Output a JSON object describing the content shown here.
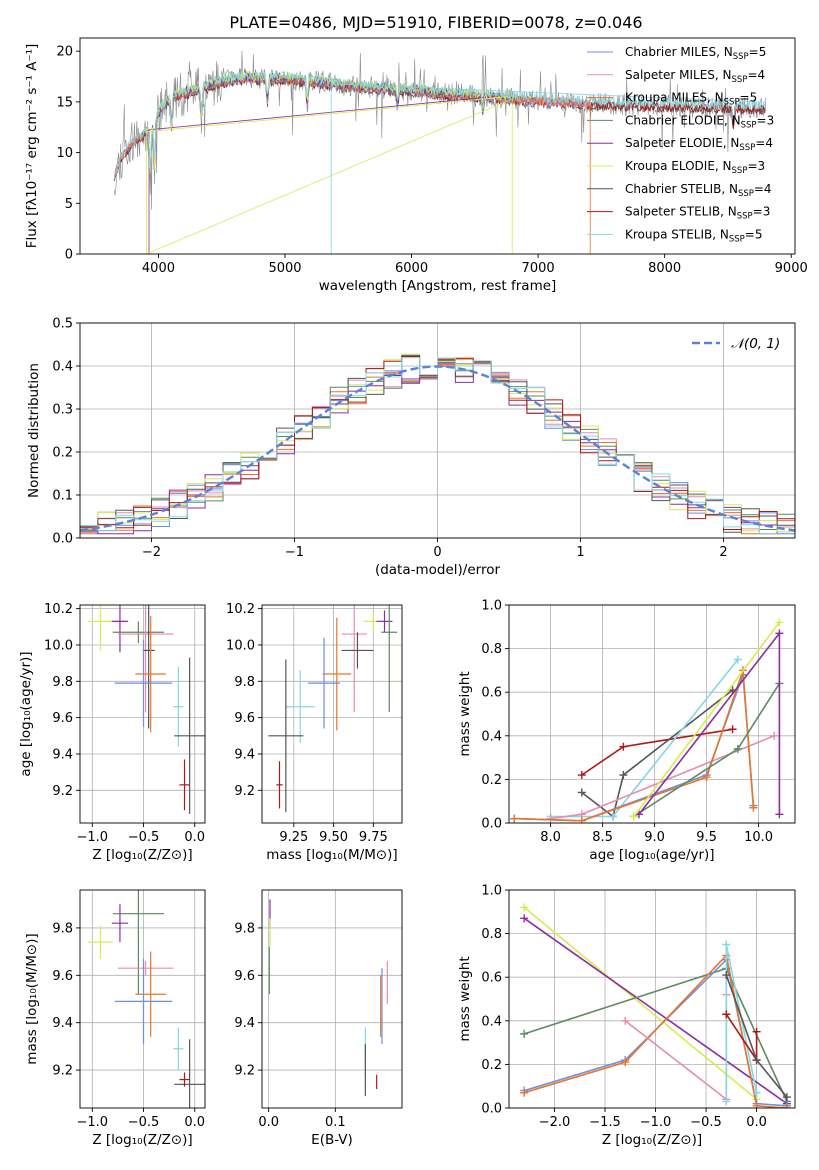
{
  "figure": {
    "title": "PLATE=0486, MJD=51910, FIBERID=0078, z=0.046"
  },
  "colors": {
    "Chabrier MILES": "#6f8fdc",
    "Salpeter MILES": "#e88ab2",
    "Kroupa MILES": "#e8762a",
    "Chabrier ELODIE": "#5d8a62",
    "Salpeter ELODIE": "#8e2ca0",
    "Kroupa ELODIE": "#d6ec52",
    "Chabrier STELIB": "#555555",
    "Salpeter STELIB": "#b01818",
    "Kroupa STELIB": "#82d8e4",
    "normal": "#5b82d8"
  },
  "chart_data": [
    {
      "id": "spectrum",
      "type": "line",
      "xlabel": "wavelength [Angstrom, rest frame]",
      "ylabel": "Flux [fλ10⁻¹⁷ erg cm⁻² s⁻¹ A⁻¹]",
      "xlim": [
        3380,
        9030
      ],
      "ylim": [
        0,
        21.3
      ],
      "xticks": [
        "4000",
        "5000",
        "6000",
        "7000",
        "8000",
        "9000"
      ],
      "yticks": [
        "0",
        "5",
        "10",
        "15",
        "20"
      ],
      "grid": false,
      "legend_position": "right",
      "legend": [
        {
          "model": "Chabrier MILES",
          "label": "Chabrier MILES, N",
          "sub": "SSP",
          "tail": "=5"
        },
        {
          "model": "Salpeter MILES",
          "label": "Salpeter MILES, N",
          "sub": "SSP",
          "tail": "=4"
        },
        {
          "model": "Kroupa MILES",
          "label": "Kroupa MILES, N",
          "sub": "SSP",
          "tail": "=5"
        },
        {
          "model": "Chabrier ELODIE",
          "label": "Chabrier ELODIE, N",
          "sub": "SSP",
          "tail": "=3"
        },
        {
          "model": "Salpeter ELODIE",
          "label": "Salpeter ELODIE, N",
          "sub": "SSP",
          "tail": "=4"
        },
        {
          "model": "Kroupa ELODIE",
          "label": "Kroupa ELODIE, N",
          "sub": "SSP",
          "tail": "=3"
        },
        {
          "model": "Chabrier STELIB",
          "label": "Chabrier STELIB, N",
          "sub": "SSP",
          "tail": "=4"
        },
        {
          "model": "Salpeter STELIB",
          "label": "Salpeter STELIB, N",
          "sub": "SSP",
          "tail": "=3"
        },
        {
          "model": "Kroupa STELIB",
          "label": "Kroupa STELIB, N",
          "sub": "SSP",
          "tail": "=5"
        }
      ],
      "continuum": [
        [
          3650,
          7.5
        ],
        [
          3700,
          9.5
        ],
        [
          3800,
          11
        ],
        [
          3900,
          12
        ],
        [
          3950,
          12.5
        ],
        [
          4000,
          14
        ],
        [
          4100,
          15.5
        ],
        [
          4300,
          16.2
        ],
        [
          4500,
          17
        ],
        [
          4700,
          17.3
        ],
        [
          5000,
          17.3
        ],
        [
          5500,
          16.6
        ],
        [
          6000,
          16.1
        ],
        [
          6500,
          15.6
        ],
        [
          7000,
          15.1
        ],
        [
          7500,
          14.8
        ],
        [
          8000,
          14.6
        ],
        [
          8500,
          14.5
        ],
        [
          8800,
          14.4
        ]
      ],
      "absorption_lines": [
        [
          3934,
          5
        ],
        [
          3968,
          5
        ],
        [
          4102,
          3.5
        ],
        [
          4340,
          3
        ],
        [
          4861,
          2.5
        ],
        [
          5175,
          2.5
        ],
        [
          5890,
          1.5
        ],
        [
          6563,
          1.5
        ],
        [
          8542,
          2
        ]
      ],
      "emission_spikes": [
        [
          3727,
          4.5
        ],
        [
          4750,
          1.5
        ],
        [
          5300,
          1
        ],
        [
          6563,
          5
        ],
        [
          6583,
          3
        ],
        [
          6716,
          2
        ],
        [
          7100,
          2
        ],
        [
          7700,
          2
        ],
        [
          8300,
          2
        ]
      ],
      "artifacts": [
        {
          "model": "Kroupa ELODIE",
          "x": 3905,
          "to": 0
        },
        {
          "model": "Salpeter ELODIE",
          "x": 3925,
          "to": 0
        },
        {
          "model": "Kroupa STELIB",
          "x": 5365,
          "to": 0
        },
        {
          "model": "Kroupa ELODIE",
          "x": 6795,
          "to": 0
        },
        {
          "model": "Kroupa MILES",
          "x": 7412,
          "to": 0
        }
      ]
    },
    {
      "id": "residuals",
      "type": "histogram",
      "xlabel": "(data-model)/error",
      "ylabel": "Normed distribution",
      "xlim": [
        -2.5,
        2.5
      ],
      "ylim": [
        0,
        0.5
      ],
      "xticks": [
        "−2",
        "−1",
        "0",
        "1",
        "2"
      ],
      "yticks": [
        "0.0",
        "0.1",
        "0.2",
        "0.3",
        "0.4",
        "0.5"
      ],
      "grid": true,
      "legend_position": "top-right",
      "normal_label": "𝒩(0, 1)",
      "bin_width": 0.125,
      "noise_seed": 7
    },
    {
      "id": "age_vs_Z",
      "type": "errorbar",
      "xlabel": "Z [log₁₀(Z/Z⊙)]",
      "ylabel": "age  [log₁₀(age/yr)]",
      "xlim": [
        -1.12,
        0.1
      ],
      "ylim": [
        9.02,
        10.22
      ],
      "xticks": [
        -1.0,
        -0.5,
        0.0
      ],
      "xticklabels": [
        "−1.0",
        "−0.5",
        "0.0"
      ],
      "yticks": [
        9.2,
        9.4,
        9.6,
        9.8,
        10.0,
        10.2
      ],
      "yticklabels": [
        "9.2",
        "9.4",
        "9.6",
        "9.8",
        "10.0",
        "10.2"
      ],
      "points": [
        {
          "model": "Kroupa ELODIE",
          "x": -0.92,
          "xe": 0.12,
          "y": 10.13,
          "ye": 0.16
        },
        {
          "model": "Salpeter ELODIE",
          "x": -0.73,
          "xe": 0.08,
          "y": 10.13,
          "ye": 0.17
        },
        {
          "model": "Chabrier ELODIE",
          "x": -0.55,
          "xe": 0.25,
          "y": 10.07,
          "ye": 0.06
        },
        {
          "model": "Salpeter MILES",
          "x": -0.48,
          "xe": 0.27,
          "y": 10.06,
          "ye": 0.43
        },
        {
          "model": "Chabrier STELIB",
          "x": -0.45,
          "xe": 0.06,
          "y": 9.97,
          "ye": 0.43
        },
        {
          "model": "Kroupa MILES",
          "x": -0.43,
          "xe": 0.15,
          "y": 9.84,
          "ye": 0.32
        },
        {
          "model": "Chabrier MILES",
          "x": -0.5,
          "xe": 0.28,
          "y": 9.79,
          "ye": 0.24
        },
        {
          "model": "Kroupa STELIB",
          "x": -0.16,
          "xe": 0.05,
          "y": 9.66,
          "ye": 0.22
        },
        {
          "model": "Chabrier STELIB",
          "x": -0.05,
          "xe": 0.15,
          "y": 9.5,
          "ye": 0.43
        },
        {
          "model": "Salpeter STELIB",
          "x": -0.1,
          "xe": 0.05,
          "y": 9.23,
          "ye": 0.14
        }
      ]
    },
    {
      "id": "age_vs_mass",
      "type": "errorbar",
      "xlabel": "mass [log₁₀(M/M⊙)]",
      "ylabel": "",
      "xlim": [
        9.05,
        9.93
      ],
      "ylim": [
        9.02,
        10.22
      ],
      "xticks": [
        9.25,
        9.5,
        9.75
      ],
      "xticklabels": [
        "9.25",
        "9.50",
        "9.75"
      ],
      "yticks": [
        9.2,
        9.4,
        9.6,
        9.8,
        10.0,
        10.2
      ],
      "yticklabels": [
        "9.2",
        "9.4",
        "9.6",
        "9.8",
        "10.0",
        "10.2"
      ],
      "points": [
        {
          "model": "Kroupa ELODIE",
          "x": 9.75,
          "xe": 0.06,
          "y": 10.13,
          "ye": 0.05
        },
        {
          "model": "Salpeter ELODIE",
          "x": 9.82,
          "xe": 0.05,
          "y": 10.13,
          "ye": 0.06
        },
        {
          "model": "Chabrier ELODIE",
          "x": 9.85,
          "xe": 0.05,
          "y": 10.07,
          "ye": 0.44
        },
        {
          "model": "Salpeter MILES",
          "x": 9.63,
          "xe": 0.08,
          "y": 10.06,
          "ye": 0.43
        },
        {
          "model": "Chabrier STELIB",
          "x": 9.65,
          "xe": 0.1,
          "y": 9.97,
          "ye": 0.1
        },
        {
          "model": "Kroupa MILES",
          "x": 9.52,
          "xe": 0.09,
          "y": 9.84,
          "ye": 0.31
        },
        {
          "model": "Chabrier MILES",
          "x": 9.44,
          "xe": 0.1,
          "y": 9.79,
          "ye": 0.25
        },
        {
          "model": "Kroupa STELIB",
          "x": 9.29,
          "xe": 0.09,
          "y": 9.66,
          "ye": 0.2
        },
        {
          "model": "Chabrier STELIB",
          "x": 9.2,
          "xe": 0.11,
          "y": 9.5,
          "ye": 0.42
        },
        {
          "model": "Salpeter STELIB",
          "x": 9.16,
          "xe": 0.02,
          "y": 9.23,
          "ye": 0.13
        }
      ]
    },
    {
      "id": "massweight_vs_age",
      "type": "line",
      "xlabel": "age  [log₁₀(age/yr)]",
      "ylabel": "mass weight",
      "xlim": [
        7.6,
        10.35
      ],
      "ylim": [
        0,
        1.0
      ],
      "xticks": [
        8.0,
        8.5,
        9.0,
        9.5,
        10.0
      ],
      "xticklabels": [
        "8.0",
        "8.5",
        "9.0",
        "9.5",
        "10.0"
      ],
      "yticks": [
        0,
        0.2,
        0.4,
        0.6,
        0.8,
        1.0
      ],
      "yticklabels": [
        "0.0",
        "0.2",
        "0.4",
        "0.6",
        "0.8",
        "1.0"
      ],
      "grid": true,
      "series": [
        {
          "model": "Salpeter STELIB",
          "x": [
            8.3,
            8.7,
            9.75
          ],
          "y": [
            0.22,
            0.35,
            0.43
          ]
        },
        {
          "model": "Chabrier STELIB",
          "x": [
            8.3,
            8.6,
            8.7,
            9.75
          ],
          "y": [
            0.14,
            0.03,
            0.22,
            0.61
          ]
        },
        {
          "model": "Kroupa STELIB",
          "x": [
            8.0,
            8.6,
            9.8
          ],
          "y": [
            0.03,
            0.03,
            0.75
          ]
        },
        {
          "model": "Salpeter MILES",
          "x": [
            8.0,
            8.3,
            10.15
          ],
          "y": [
            0.02,
            0.04,
            0.4
          ]
        },
        {
          "model": "Chabrier MILES",
          "x": [
            7.65,
            8.3,
            9.5,
            9.85,
            9.95
          ],
          "y": [
            0.02,
            0.01,
            0.22,
            0.68,
            0.08
          ]
        },
        {
          "model": "Kroupa MILES",
          "x": [
            7.65,
            8.3,
            9.5,
            9.85,
            9.95
          ],
          "y": [
            0.02,
            0.01,
            0.21,
            0.7,
            0.07
          ]
        },
        {
          "model": "Chabrier ELODIE",
          "x": [
            8.8,
            9.8,
            10.2
          ],
          "y": [
            0.03,
            0.34,
            0.64
          ]
        },
        {
          "model": "Salpeter ELODIE",
          "x": [
            8.85,
            10.2,
            10.2
          ],
          "y": [
            0.04,
            0.87,
            0.04
          ]
        },
        {
          "model": "Kroupa ELODIE",
          "x": [
            8.8,
            10.2
          ],
          "y": [
            0.03,
            0.92
          ]
        }
      ]
    },
    {
      "id": "mass_vs_Z",
      "type": "errorbar",
      "xlabel": "Z [log₁₀(Z/Z⊙)]",
      "ylabel": "mass [log₁₀(M/M⊙)]",
      "xlim": [
        -1.12,
        0.1
      ],
      "ylim": [
        9.04,
        9.96
      ],
      "xticks": [
        -1.0,
        -0.5,
        0.0
      ],
      "xticklabels": [
        "−1.0",
        "−0.5",
        "0.0"
      ],
      "yticks": [
        9.2,
        9.4,
        9.6,
        9.8
      ],
      "yticklabels": [
        "9.2",
        "9.4",
        "9.6",
        "9.8"
      ],
      "points": [
        {
          "model": "Kroupa ELODIE",
          "x": -0.92,
          "xe": 0.12,
          "y": 9.74,
          "ye": 0.07
        },
        {
          "model": "Salpeter ELODIE",
          "x": -0.73,
          "xe": 0.08,
          "y": 9.82,
          "ye": 0.08
        },
        {
          "model": "Chabrier ELODIE",
          "x": -0.55,
          "xe": 0.25,
          "y": 9.86,
          "ye": 0.34
        },
        {
          "model": "Salpeter MILES",
          "x": -0.48,
          "xe": 0.27,
          "y": 9.63,
          "ye": 0.03
        },
        {
          "model": "Kroupa MILES",
          "x": -0.43,
          "xe": 0.15,
          "y": 9.52,
          "ye": 0.18
        },
        {
          "model": "Chabrier MILES",
          "x": -0.5,
          "xe": 0.28,
          "y": 9.49,
          "ye": 0.18
        },
        {
          "model": "Kroupa STELIB",
          "x": -0.16,
          "xe": 0.05,
          "y": 9.29,
          "ye": 0.09
        },
        {
          "model": "Chabrier STELIB",
          "x": -0.05,
          "xe": 0.15,
          "y": 9.14,
          "ye": 0.19
        },
        {
          "model": "Salpeter STELIB",
          "x": -0.1,
          "xe": 0.05,
          "y": 9.16,
          "ye": 0.03
        }
      ]
    },
    {
      "id": "mass_vs_ebv",
      "type": "errorbar",
      "xlabel": "E(B-V)",
      "ylabel": "",
      "xlim": [
        -0.01,
        0.2
      ],
      "ylim": [
        9.04,
        9.96
      ],
      "xticks": [
        0.0,
        0.1
      ],
      "xticklabels": [
        "0.0",
        "0.1"
      ],
      "yticks": [
        9.2,
        9.4,
        9.6,
        9.8
      ],
      "yticklabels": [
        "9.2",
        "9.4",
        "9.6",
        "9.8"
      ],
      "points": [
        {
          "model": "Salpeter ELODIE",
          "x": 0.002,
          "xe": 0,
          "y": 9.86,
          "ye": 0.06
        },
        {
          "model": "Kroupa ELODIE",
          "x": 0.002,
          "xe": 0,
          "y": 9.78,
          "ye": 0.06
        },
        {
          "model": "Chabrier ELODIE",
          "x": 0.001,
          "xe": 0,
          "y": 9.62,
          "ye": 0.1
        },
        {
          "model": "Salpeter MILES",
          "x": 0.178,
          "xe": 0,
          "y": 9.57,
          "ye": 0.09
        },
        {
          "model": "Kroupa MILES",
          "x": 0.168,
          "xe": 0,
          "y": 9.47,
          "ye": 0.13
        },
        {
          "model": "Chabrier MILES",
          "x": 0.17,
          "xe": 0,
          "y": 9.47,
          "ye": 0.16
        },
        {
          "model": "Kroupa STELIB",
          "x": 0.145,
          "xe": 0,
          "y": 9.28,
          "ye": 0.1
        },
        {
          "model": "Chabrier STELIB",
          "x": 0.145,
          "xe": 0,
          "y": 9.2,
          "ye": 0.11
        },
        {
          "model": "Salpeter STELIB",
          "x": 0.162,
          "xe": 0,
          "y": 9.15,
          "ye": 0.03
        }
      ]
    },
    {
      "id": "massweight_vs_Z",
      "type": "line",
      "xlabel": "Z [log₁₀(Z/Z⊙)]",
      "ylabel": "mass weight",
      "xlim": [
        -2.45,
        0.38
      ],
      "ylim": [
        0,
        1.0
      ],
      "xticks": [
        -2.0,
        -1.5,
        -1.0,
        -0.5,
        0.0
      ],
      "xticklabels": [
        "−2.0",
        "−1.5",
        "−1.0",
        "−0.5",
        "0.0"
      ],
      "yticks": [
        0,
        0.2,
        0.4,
        0.6,
        0.8,
        1.0
      ],
      "yticklabels": [
        "0.0",
        "0.2",
        "0.4",
        "0.6",
        "0.8",
        "1.0"
      ],
      "grid": true,
      "series": [
        {
          "model": "Kroupa ELODIE",
          "x": [
            -2.3,
            0.0
          ],
          "y": [
            0.92,
            0.04
          ]
        },
        {
          "model": "Salpeter ELODIE",
          "x": [
            -2.3,
            0.3
          ],
          "y": [
            0.87,
            0.02
          ]
        },
        {
          "model": "Chabrier ELODIE",
          "x": [
            -2.3,
            -0.3,
            0.3
          ],
          "y": [
            0.34,
            0.64,
            0.03
          ]
        },
        {
          "model": "Chabrier MILES",
          "x": [
            -2.3,
            -1.3,
            -0.3,
            0.0,
            0.3
          ],
          "y": [
            0.08,
            0.22,
            0.68,
            0.02,
            0.01
          ]
        },
        {
          "model": "Kroupa MILES",
          "x": [
            -2.3,
            -1.3,
            -0.3,
            0.0,
            0.3
          ],
          "y": [
            0.07,
            0.21,
            0.7,
            0.01,
            0.0
          ]
        },
        {
          "model": "Salpeter MILES",
          "x": [
            -1.3,
            -0.3,
            -0.3
          ],
          "y": [
            0.4,
            0.04,
            0.52
          ]
        },
        {
          "model": "Kroupa STELIB",
          "x": [
            -0.3,
            -0.3,
            0.0
          ],
          "y": [
            0.03,
            0.75,
            0.07
          ]
        },
        {
          "model": "Salpeter STELIB",
          "x": [
            -0.3,
            0.0,
            0.0
          ],
          "y": [
            0.43,
            0.22,
            0.35
          ]
        },
        {
          "model": "Chabrier STELIB",
          "x": [
            -0.3,
            0.0,
            0.3
          ],
          "y": [
            0.61,
            0.22,
            0.05
          ]
        }
      ]
    }
  ]
}
